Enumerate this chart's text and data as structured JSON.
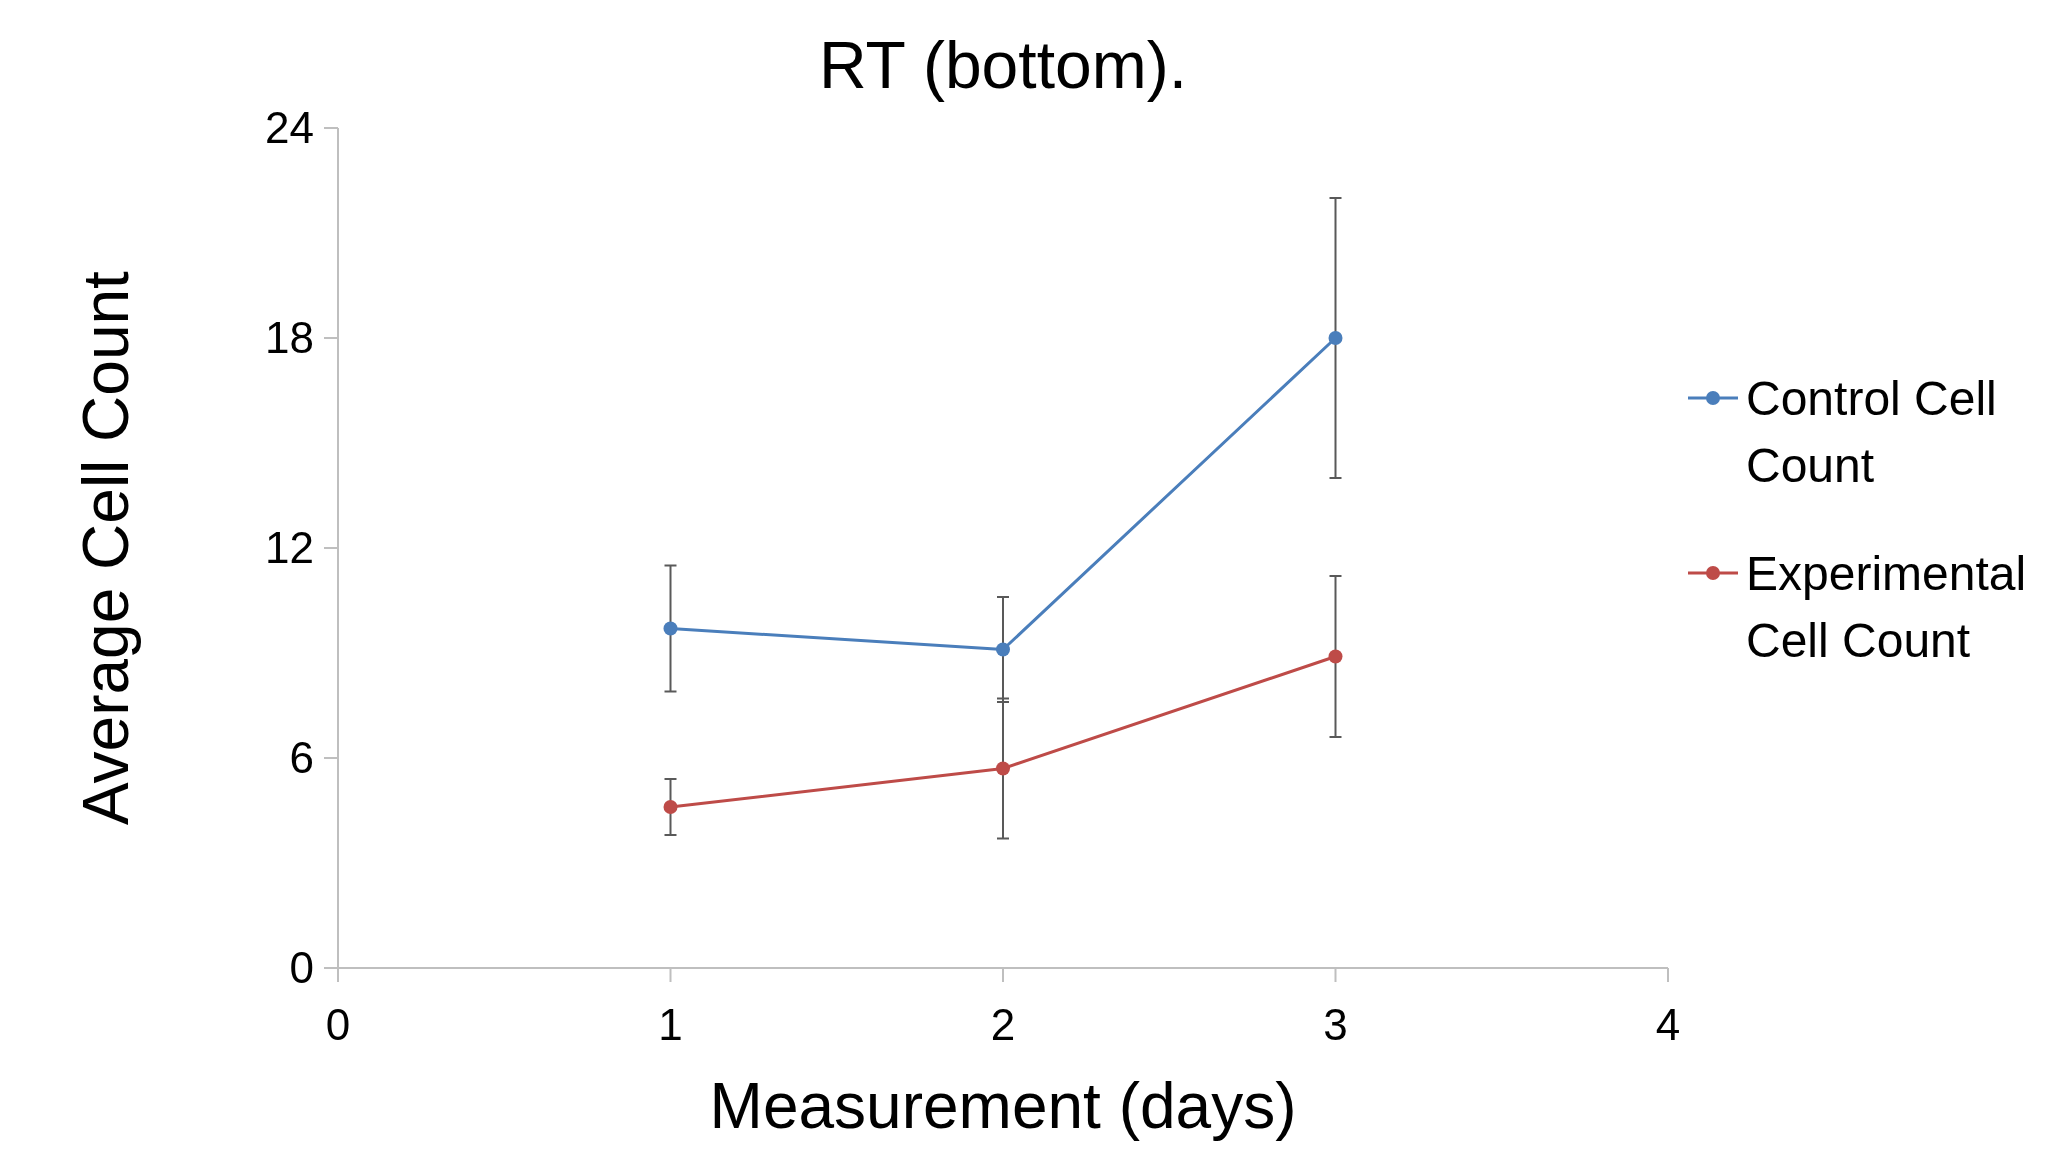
{
  "chart_data": {
    "type": "line",
    "title": "RT (bottom).",
    "xlabel": "Measurement (days)",
    "ylabel": "Average Cell Count",
    "x": [
      1,
      2,
      3
    ],
    "xlim": [
      0,
      4
    ],
    "xticks": [
      0,
      1,
      2,
      3,
      4
    ],
    "ylim": [
      0,
      24
    ],
    "yticks": [
      0,
      6,
      12,
      18,
      24
    ],
    "series": [
      {
        "name": "Control Cell Count",
        "color": "#4a7ebb",
        "values": [
          9.7,
          9.1,
          18
        ],
        "errors": [
          1.8,
          1.5,
          4
        ]
      },
      {
        "name": "Experimental Cell Count",
        "color": "#be4b48",
        "values": [
          4.6,
          5.7,
          8.9
        ],
        "errors": [
          0.8,
          2.0,
          2.3
        ]
      }
    ],
    "legend": "right",
    "marker": "circle",
    "line_style": "solid",
    "grid": false
  }
}
